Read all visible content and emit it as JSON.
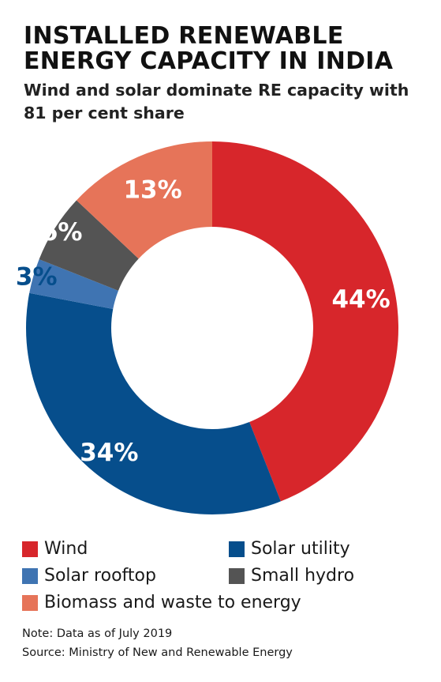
{
  "title": "INSTALLED RENEWABLE ENERGY CAPACITY IN INDIA",
  "subtitle": "Wind and solar dominate RE capacity with 81 per cent share",
  "chart_data": {
    "type": "pie",
    "donut": true,
    "categories": [
      "Wind",
      "Solar utility",
      "Solar rooftop",
      "Small hydro",
      "Biomass and waste to energy"
    ],
    "values": [
      44,
      34,
      3,
      6,
      13
    ],
    "labels": [
      "44%",
      "34%",
      "3%",
      "6%",
      "13%"
    ],
    "colors": [
      "#d7262b",
      "#064e8c",
      "#3f74b2",
      "#545454",
      "#e67459"
    ],
    "label_colors": [
      "#ffffff",
      "#ffffff",
      "#064e8c",
      "#ffffff",
      "#ffffff"
    ],
    "legend_placement": "bottom"
  },
  "legend": [
    {
      "label": "Wind",
      "color": "#d7262b"
    },
    {
      "label": "Solar utility",
      "color": "#064e8c"
    },
    {
      "label": "Solar rooftop",
      "color": "#3f74b2"
    },
    {
      "label": "Small hydro",
      "color": "#545454"
    },
    {
      "label": "Biomass and waste to energy",
      "color": "#e67459"
    }
  ],
  "note": "Note: Data as of July 2019",
  "source": "Source: Ministry of New and Renewable Energy"
}
